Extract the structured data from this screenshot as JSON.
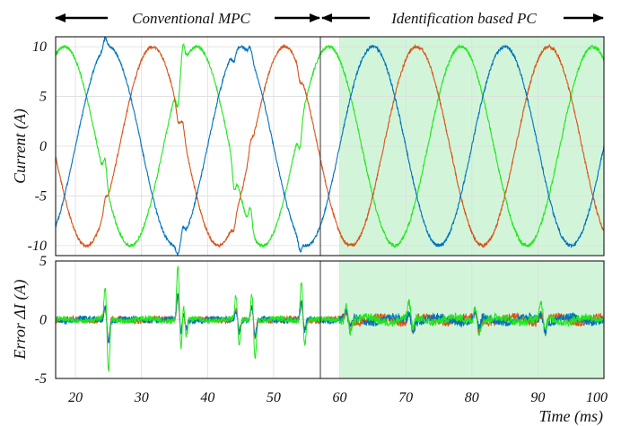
{
  "figure": {
    "banner_left": "Conventional MPC",
    "banner_right": "Identification based PC",
    "x_axis_label": "Time (ms)"
  },
  "colors": {
    "phase_a": "#0072BD",
    "phase_b": "#D95319",
    "phase_c": "#22E61E",
    "highlight": "#D2F5D9",
    "grid": "#dddddd"
  },
  "chart_data": [
    {
      "type": "line",
      "panel": "current",
      "ylabel": "Current (A)",
      "xlim": [
        17,
        100
      ],
      "ylim": [
        -11,
        11
      ],
      "xticks": [
        20,
        30,
        40,
        50,
        60,
        70,
        80,
        90,
        100
      ],
      "yticks": [
        -10,
        -5,
        0,
        5,
        10
      ],
      "highlight_region": [
        60,
        100
      ],
      "frequency_hz": 50,
      "amplitude": 10,
      "series": [
        {
          "key": "a",
          "phase_deg": 0,
          "peak_times_ms": [
            25,
            45,
            65,
            85
          ]
        },
        {
          "key": "b",
          "phase_deg": -120,
          "peak_times_ms": [
            31.7,
            51.7,
            71.7,
            91.7
          ]
        },
        {
          "key": "c",
          "phase_deg": 120,
          "peak_times_ms": [
            18.3,
            38.3,
            58.3,
            78.3,
            98.3
          ]
        }
      ],
      "disturbances_ms": [
        24.5,
        35.5,
        36.3,
        44,
        46.5,
        54
      ]
    },
    {
      "type": "line",
      "panel": "error",
      "ylabel": "Error ΔI (A)",
      "xlim": [
        17,
        100
      ],
      "ylim": [
        -5,
        5
      ],
      "xticks": [
        20,
        30,
        40,
        50,
        60,
        70,
        80,
        90,
        100
      ],
      "yticks": [
        -5,
        0,
        5
      ],
      "highlight_region": [
        60,
        100
      ],
      "spikes": [
        {
          "t": 24.5,
          "min": -4.5,
          "max": 2.7
        },
        {
          "t": 35.5,
          "min": -2.8,
          "max": 4.8
        },
        {
          "t": 36.3,
          "min": -1.5,
          "max": 1.5
        },
        {
          "t": 44.3,
          "min": -2.2,
          "max": 2.0
        },
        {
          "t": 46.7,
          "min": -3.3,
          "max": 2.3
        },
        {
          "t": 54.2,
          "min": -2.2,
          "max": 3.3
        }
      ],
      "steady_band": {
        "conventional": 0.5,
        "identification": 0.7
      }
    }
  ]
}
